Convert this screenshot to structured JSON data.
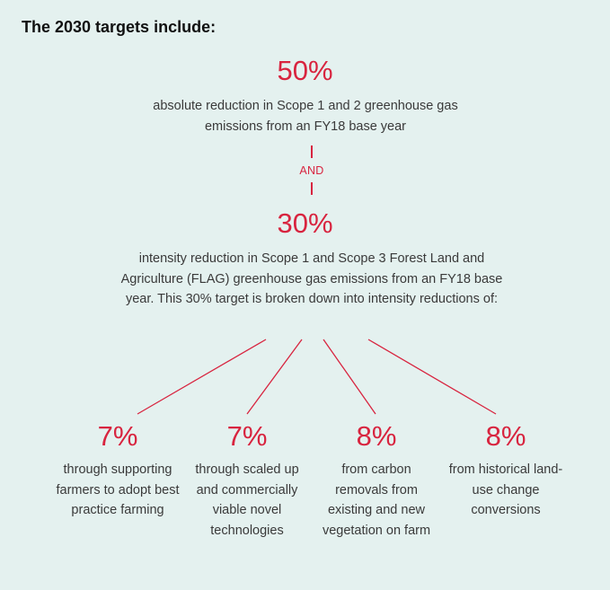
{
  "heading": "The 2030 targets include:",
  "target_1": {
    "value": "50%",
    "description": "absolute reduction in Scope 1 and 2 greenhouse gas emissions from an FY18 base year"
  },
  "connector_label": "AND",
  "target_2": {
    "value": "30%",
    "description": "intensity reduction in Scope 1 and Scope 3 Forest Land and Agriculture (FLAG) greenhouse gas emissions from an FY18 base year. This 30% target is broken down into intensity reductions of:"
  },
  "breakdown": [
    {
      "value": "7%",
      "description": "through supporting farmers to adopt best practice farming"
    },
    {
      "value": "7%",
      "description": "through scaled up and commercially viable novel technologies"
    },
    {
      "value": "8%",
      "description": "from carbon removals from existing and new vegetation on farm"
    },
    {
      "value": "8%",
      "description": "from historical land-use change conversions"
    }
  ],
  "colors": {
    "accent": "#d8243f",
    "background": "#e4f1ef",
    "text": "#3a3a3a"
  }
}
